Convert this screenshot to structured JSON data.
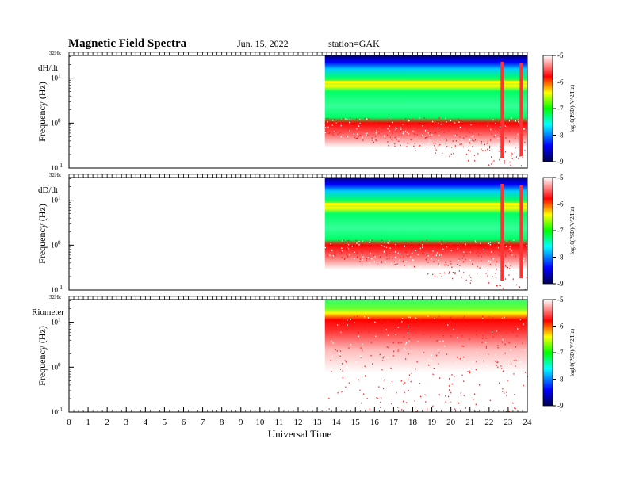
{
  "header": {
    "title": "Magnetic  Field  Spectra",
    "date": "Jun. 15, 2022",
    "station": "station=GAK"
  },
  "chart_data": [
    {
      "type": "heatmap",
      "panel_label": "dH/dt",
      "top_label": "32Hz",
      "ylabel": "Frequency  (Hz)",
      "yscale": "log",
      "ylim": [
        0.1,
        32
      ],
      "ytick_labels": [
        "10^-1",
        "10^0",
        "10^1"
      ],
      "xlim": [
        0,
        24
      ],
      "data_start_hour": 13.4,
      "colorbar": {
        "label": "log10(PSD)(V^2/Hz)",
        "range": [
          -9,
          -5
        ],
        "ticks": [
          "-9",
          "-8",
          "-7",
          "-6",
          "-5"
        ]
      }
    },
    {
      "type": "heatmap",
      "panel_label": "dD/dt",
      "top_label": "32Hz",
      "ylabel": "Frequency  (Hz)",
      "yscale": "log",
      "ylim": [
        0.1,
        32
      ],
      "ytick_labels": [
        "10^-1",
        "10^0",
        "10^1"
      ],
      "xlim": [
        0,
        24
      ],
      "data_start_hour": 13.4,
      "colorbar": {
        "label": "log10(PSD)(V^2/Hz)",
        "range": [
          -9,
          -5
        ],
        "ticks": [
          "-9",
          "-8",
          "-7",
          "-6",
          "-5"
        ]
      }
    },
    {
      "type": "heatmap",
      "panel_label": "Riometer",
      "top_label": "32Hz",
      "ylabel": "Frequency  (Hz)",
      "yscale": "log",
      "ylim": [
        0.1,
        32
      ],
      "ytick_labels": [
        "10^-1",
        "10^0",
        "10^1"
      ],
      "xlim": [
        0,
        24
      ],
      "data_start_hour": 13.4,
      "colorbar": {
        "label": "log10(PSD)(V^2/Hz)",
        "range": [
          -9,
          -5
        ],
        "ticks": [
          "-9",
          "-8",
          "-7",
          "-6",
          "-5"
        ]
      }
    }
  ],
  "xaxis": {
    "label": "Universal Time",
    "ticks": [
      "0",
      "1",
      "2",
      "3",
      "4",
      "5",
      "6",
      "7",
      "8",
      "9",
      "10",
      "11",
      "12",
      "13",
      "14",
      "15",
      "16",
      "17",
      "18",
      "19",
      "20",
      "21",
      "22",
      "23",
      "24"
    ]
  },
  "colormap": [
    "#000050",
    "#0000ff",
    "#00ffff",
    "#00ff00",
    "#ffff00",
    "#ff0000",
    "#ffffff"
  ]
}
